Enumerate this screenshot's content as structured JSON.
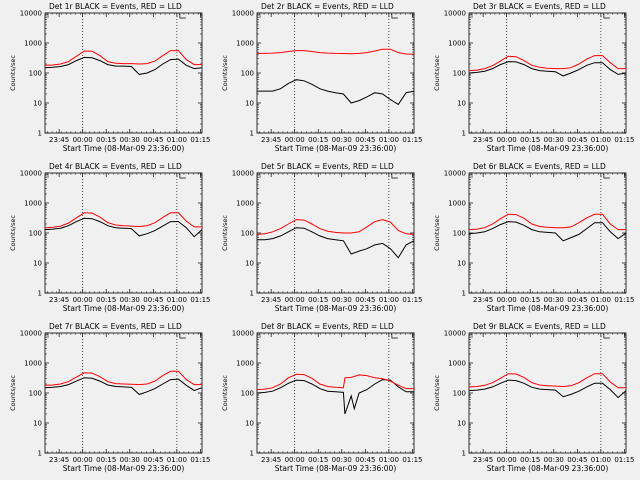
{
  "figure": {
    "xlabel": "Start Time (08-Mar-09 23:36:00)",
    "ylabel": "Counts/sec",
    "xticks": [
      "23:45",
      "00:00",
      "00:15",
      "00:30",
      "00:45",
      "01:00",
      "01:15"
    ],
    "yticks": [
      "1",
      "10",
      "100",
      "1000",
      "10000"
    ],
    "colors": {
      "events": "#000000",
      "lld": "#ff0000",
      "background": "#f0f0f0"
    }
  },
  "chart_data": [
    {
      "type": "line",
      "title": "Det 1r BLACK = Events, RED = LLD",
      "xlabel": "Start Time (08-Mar-09 23:36:00)",
      "ylabel": "Counts/sec",
      "xlim": [
        0,
        100
      ],
      "x_tick_values": [
        9,
        24,
        39,
        54,
        69,
        84,
        99
      ],
      "ylim": [
        1,
        10000
      ],
      "yscale": "log",
      "vlines": [
        24,
        84
      ],
      "series": [
        {
          "name": "Events",
          "color": "#000000",
          "x": [
            0,
            5,
            10,
            15,
            20,
            25,
            30,
            35,
            40,
            45,
            50,
            55,
            60,
            65,
            70,
            75,
            80,
            85,
            90,
            95,
            100
          ],
          "values": [
            150,
            155,
            165,
            190,
            260,
            330,
            320,
            260,
            190,
            170,
            170,
            165,
            90,
            100,
            130,
            200,
            280,
            290,
            180,
            140,
            150
          ]
        },
        {
          "name": "LLD",
          "color": "#ff0000",
          "x": [
            0,
            5,
            10,
            15,
            20,
            25,
            30,
            35,
            40,
            45,
            50,
            55,
            60,
            65,
            70,
            75,
            80,
            85,
            90,
            95,
            100
          ],
          "values": [
            180,
            185,
            200,
            240,
            360,
            540,
            530,
            380,
            240,
            210,
            205,
            205,
            200,
            205,
            250,
            380,
            560,
            560,
            280,
            190,
            190
          ]
        }
      ]
    },
    {
      "type": "line",
      "title": "Det 2r BLACK = Events, RED = LLD",
      "xlabel": "Start Time (08-Mar-09 23:36:00)",
      "ylabel": "Counts/sec",
      "xlim": [
        0,
        100
      ],
      "x_tick_values": [
        9,
        24,
        39,
        54,
        69,
        84,
        99
      ],
      "ylim": [
        1,
        10000
      ],
      "yscale": "log",
      "vlines": [
        24,
        84
      ],
      "series": [
        {
          "name": "Events",
          "color": "#000000",
          "x": [
            0,
            5,
            10,
            15,
            20,
            25,
            30,
            35,
            40,
            45,
            50,
            55,
            60,
            65,
            70,
            75,
            80,
            85,
            90,
            95,
            100
          ],
          "values": [
            25,
            25,
            25,
            30,
            45,
            60,
            55,
            42,
            30,
            25,
            22,
            20,
            10,
            12,
            16,
            22,
            20,
            13,
            9,
            22,
            25
          ]
        },
        {
          "name": "LLD",
          "color": "#ff0000",
          "x": [
            0,
            5,
            10,
            15,
            20,
            25,
            30,
            35,
            40,
            45,
            50,
            55,
            60,
            65,
            70,
            75,
            80,
            85,
            90,
            95,
            100
          ],
          "values": [
            450,
            450,
            460,
            480,
            520,
            560,
            560,
            520,
            480,
            460,
            450,
            445,
            440,
            450,
            480,
            540,
            620,
            620,
            480,
            430,
            420
          ]
        }
      ]
    },
    {
      "type": "line",
      "title": "Det 3r BLACK = Events, RED = LLD",
      "xlabel": "Start Time (08-Mar-09 23:36:00)",
      "ylabel": "Counts/sec",
      "xlim": [
        0,
        100
      ],
      "x_tick_values": [
        9,
        24,
        39,
        54,
        69,
        84,
        99
      ],
      "ylim": [
        1,
        10000
      ],
      "yscale": "log",
      "vlines": [
        24,
        84
      ],
      "series": [
        {
          "name": "Events",
          "color": "#000000",
          "x": [
            0,
            5,
            10,
            15,
            20,
            25,
            30,
            35,
            40,
            45,
            50,
            55,
            60,
            65,
            70,
            75,
            80,
            85,
            90,
            95,
            100
          ],
          "values": [
            100,
            105,
            115,
            140,
            190,
            240,
            235,
            190,
            140,
            120,
            115,
            110,
            80,
            100,
            130,
            180,
            220,
            220,
            130,
            90,
            100
          ]
        },
        {
          "name": "LLD",
          "color": "#ff0000",
          "x": [
            0,
            5,
            10,
            15,
            20,
            25,
            30,
            35,
            40,
            45,
            50,
            55,
            60,
            65,
            70,
            75,
            80,
            85,
            90,
            95,
            100
          ],
          "values": [
            120,
            125,
            140,
            175,
            250,
            360,
            350,
            260,
            180,
            155,
            145,
            140,
            140,
            150,
            200,
            290,
            380,
            380,
            220,
            140,
            140
          ]
        }
      ]
    },
    {
      "type": "line",
      "title": "Det 4r BLACK = Events, RED = LLD",
      "xlabel": "Start Time (08-Mar-09 23:36:00)",
      "ylabel": "Counts/sec",
      "xlim": [
        0,
        100
      ],
      "x_tick_values": [
        9,
        24,
        39,
        54,
        69,
        84,
        99
      ],
      "ylim": [
        1,
        10000
      ],
      "yscale": "log",
      "vlines": [
        24,
        84
      ],
      "series": [
        {
          "name": "Events",
          "color": "#000000",
          "x": [
            0,
            5,
            10,
            15,
            20,
            25,
            30,
            35,
            40,
            45,
            50,
            55,
            60,
            65,
            70,
            75,
            80,
            85,
            90,
            95,
            100
          ],
          "values": [
            130,
            135,
            145,
            175,
            240,
            310,
            300,
            240,
            175,
            150,
            145,
            140,
            80,
            95,
            120,
            170,
            240,
            240,
            150,
            75,
            130
          ]
        },
        {
          "name": "LLD",
          "color": "#ff0000",
          "x": [
            0,
            5,
            10,
            15,
            20,
            25,
            30,
            35,
            40,
            45,
            50,
            55,
            60,
            65,
            70,
            75,
            80,
            85,
            90,
            95,
            100
          ],
          "values": [
            150,
            155,
            170,
            215,
            320,
            470,
            460,
            340,
            220,
            185,
            175,
            170,
            165,
            175,
            220,
            330,
            470,
            470,
            250,
            160,
            160
          ]
        }
      ]
    },
    {
      "type": "line",
      "title": "Det 5r BLACK = Events, RED = LLD",
      "xlabel": "Start Time (08-Mar-09 23:36:00)",
      "ylabel": "Counts/sec",
      "xlim": [
        0,
        100
      ],
      "x_tick_values": [
        9,
        24,
        39,
        54,
        69,
        84,
        99
      ],
      "ylim": [
        1,
        10000
      ],
      "yscale": "log",
      "vlines": [
        24,
        84
      ],
      "series": [
        {
          "name": "Events",
          "color": "#000000",
          "x": [
            0,
            5,
            10,
            15,
            20,
            25,
            30,
            35,
            40,
            45,
            50,
            55,
            60,
            65,
            70,
            75,
            80,
            85,
            90,
            95,
            100
          ],
          "values": [
            60,
            60,
            65,
            80,
            110,
            150,
            145,
            110,
            80,
            65,
            60,
            55,
            20,
            25,
            30,
            40,
            45,
            30,
            15,
            40,
            55
          ]
        },
        {
          "name": "LLD",
          "color": "#ff0000",
          "x": [
            0,
            5,
            10,
            15,
            20,
            25,
            30,
            35,
            40,
            45,
            50,
            55,
            60,
            65,
            70,
            75,
            80,
            85,
            90,
            95,
            100
          ],
          "values": [
            90,
            95,
            110,
            140,
            200,
            280,
            270,
            200,
            140,
            115,
            105,
            100,
            100,
            110,
            160,
            240,
            280,
            230,
            120,
            95,
            90
          ]
        }
      ]
    },
    {
      "type": "line",
      "title": "Det 6r BLACK = Events, RED = LLD",
      "xlabel": "Start Time (08-Mar-09 23:36:00)",
      "ylabel": "Counts/sec",
      "xlim": [
        0,
        100
      ],
      "x_tick_values": [
        9,
        24,
        39,
        54,
        69,
        84,
        99
      ],
      "ylim": [
        1,
        10000
      ],
      "yscale": "log",
      "vlines": [
        24,
        84
      ],
      "series": [
        {
          "name": "Events",
          "color": "#000000",
          "x": [
            0,
            5,
            10,
            15,
            20,
            25,
            30,
            35,
            40,
            45,
            50,
            55,
            60,
            65,
            70,
            75,
            80,
            85,
            90,
            95,
            100
          ],
          "values": [
            95,
            100,
            110,
            140,
            190,
            240,
            230,
            180,
            130,
            110,
            105,
            100,
            55,
            70,
            90,
            140,
            220,
            220,
            110,
            65,
            100
          ]
        },
        {
          "name": "LLD",
          "color": "#ff0000",
          "x": [
            0,
            5,
            10,
            15,
            20,
            25,
            30,
            35,
            40,
            45,
            50,
            55,
            60,
            65,
            70,
            75,
            80,
            85,
            90,
            95,
            100
          ],
          "values": [
            130,
            135,
            150,
            200,
            300,
            420,
            410,
            310,
            200,
            165,
            155,
            150,
            150,
            160,
            220,
            320,
            420,
            420,
            200,
            130,
            130
          ]
        }
      ]
    },
    {
      "type": "line",
      "title": "Det 7r BLACK = Events, RED = LLD",
      "xlabel": "Start Time (08-Mar-09 23:36:00)",
      "ylabel": "Counts/sec",
      "xlim": [
        0,
        100
      ],
      "x_tick_values": [
        9,
        24,
        39,
        54,
        69,
        84,
        99
      ],
      "ylim": [
        1,
        10000
      ],
      "yscale": "log",
      "vlines": [
        24,
        84
      ],
      "series": [
        {
          "name": "Events",
          "color": "#000000",
          "x": [
            0,
            5,
            10,
            15,
            20,
            25,
            30,
            35,
            40,
            45,
            50,
            55,
            60,
            65,
            70,
            75,
            80,
            85,
            90,
            95,
            100
          ],
          "values": [
            150,
            155,
            165,
            190,
            250,
            320,
            310,
            250,
            185,
            165,
            160,
            155,
            90,
            110,
            140,
            200,
            280,
            290,
            180,
            120,
            150
          ]
        },
        {
          "name": "LLD",
          "color": "#ff0000",
          "x": [
            0,
            5,
            10,
            15,
            20,
            25,
            30,
            35,
            40,
            45,
            50,
            55,
            60,
            65,
            70,
            75,
            80,
            85,
            90,
            95,
            100
          ],
          "values": [
            180,
            185,
            200,
            240,
            340,
            470,
            460,
            350,
            240,
            205,
            200,
            195,
            190,
            200,
            250,
            380,
            530,
            530,
            280,
            190,
            190
          ]
        }
      ]
    },
    {
      "type": "line",
      "title": "Det 8r BLACK = Events, RED = LLD",
      "xlabel": "Start Time (08-Mar-09 23:36:00)",
      "ylabel": "Counts/sec",
      "xlim": [
        0,
        100
      ],
      "x_tick_values": [
        9,
        24,
        39,
        54,
        69,
        84,
        99
      ],
      "ylim": [
        1,
        10000
      ],
      "yscale": "log",
      "vlines": [
        24,
        84
      ],
      "series": [
        {
          "name": "Events",
          "color": "#000000",
          "x": [
            0,
            5,
            10,
            15,
            20,
            25,
            30,
            35,
            40,
            45,
            50,
            55,
            56,
            60,
            62,
            65,
            70,
            75,
            80,
            85,
            90,
            95,
            100
          ],
          "values": [
            100,
            105,
            115,
            150,
            210,
            270,
            260,
            200,
            140,
            115,
            110,
            105,
            20,
            80,
            30,
            100,
            130,
            200,
            280,
            270,
            160,
            110,
            110
          ]
        },
        {
          "name": "LLD",
          "color": "#ff0000",
          "x": [
            0,
            5,
            10,
            15,
            20,
            25,
            30,
            35,
            40,
            45,
            50,
            55,
            56,
            60,
            65,
            70,
            75,
            80,
            85,
            90,
            95,
            100
          ],
          "values": [
            130,
            135,
            150,
            200,
            320,
            420,
            410,
            310,
            200,
            165,
            155,
            150,
            320,
            330,
            400,
            380,
            320,
            300,
            250,
            180,
            140,
            140
          ]
        }
      ]
    },
    {
      "type": "line",
      "title": "Det 9r BLACK = Events, RED = LLD",
      "xlabel": "Start Time (08-Mar-09 23:36:00)",
      "ylabel": "Counts/sec",
      "xlim": [
        0,
        100
      ],
      "x_tick_values": [
        9,
        24,
        39,
        54,
        69,
        84,
        99
      ],
      "ylim": [
        1,
        10000
      ],
      "yscale": "log",
      "vlines": [
        24,
        84
      ],
      "series": [
        {
          "name": "Events",
          "color": "#000000",
          "x": [
            0,
            5,
            10,
            15,
            20,
            25,
            30,
            35,
            40,
            45,
            50,
            55,
            60,
            65,
            70,
            75,
            80,
            85,
            90,
            95,
            100
          ],
          "values": [
            120,
            125,
            135,
            160,
            210,
            270,
            260,
            210,
            155,
            135,
            130,
            125,
            75,
            90,
            115,
            160,
            210,
            210,
            130,
            70,
            120
          ]
        },
        {
          "name": "LLD",
          "color": "#ff0000",
          "x": [
            0,
            5,
            10,
            15,
            20,
            25,
            30,
            35,
            40,
            45,
            50,
            55,
            60,
            65,
            70,
            75,
            80,
            85,
            90,
            95,
            100
          ],
          "values": [
            160,
            165,
            180,
            220,
            310,
            440,
            430,
            330,
            220,
            185,
            175,
            170,
            165,
            175,
            220,
            320,
            440,
            440,
            230,
            150,
            150
          ]
        }
      ]
    }
  ]
}
